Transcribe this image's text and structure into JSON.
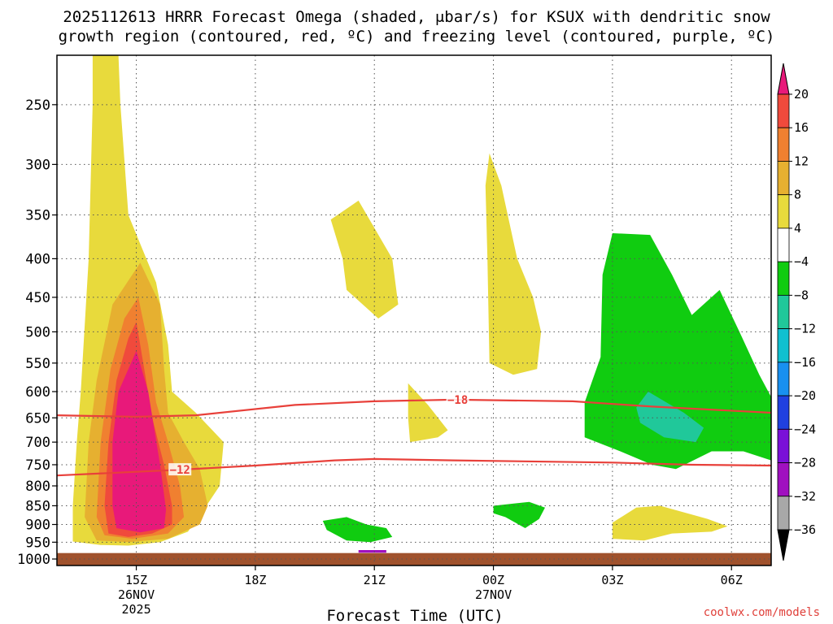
{
  "title": {
    "line1": "2025112613 HRRR Forecast Omega (shaded, μbar/s) for KSUX with dendritic snow",
    "line2": "growth region (contoured, red, ºC) and freezing level (contoured, purple, ºC)"
  },
  "credit": "coolwx.com/models",
  "chart_data": {
    "type": "heatmap",
    "xlabel": "Forecast Time (UTC)",
    "ylabel": "",
    "x_range_hours_from_13z": [
      0,
      18
    ],
    "y_axis": {
      "scale": "log",
      "reversed": true,
      "range": [
        1020,
        215
      ]
    },
    "y_ticks": [
      250,
      300,
      350,
      400,
      450,
      500,
      550,
      600,
      650,
      700,
      750,
      800,
      850,
      900,
      950,
      1000
    ],
    "y_tick_labels": [
      "250",
      "300",
      "350",
      "400",
      "450",
      "500",
      "550",
      "600",
      "650",
      "700",
      "750",
      "800",
      "850",
      "900",
      "950",
      "1000"
    ],
    "x_ticks": [
      {
        "hour": 2,
        "label": "15Z",
        "sub1": "26NOV",
        "sub2": "2025"
      },
      {
        "hour": 5,
        "label": "18Z",
        "sub1": "",
        "sub2": ""
      },
      {
        "hour": 8,
        "label": "21Z",
        "sub1": "",
        "sub2": ""
      },
      {
        "hour": 11,
        "label": "00Z",
        "sub1": "27NOV",
        "sub2": ""
      },
      {
        "hour": 14,
        "label": "03Z",
        "sub1": "",
        "sub2": ""
      },
      {
        "hour": 17,
        "label": "06Z",
        "sub1": "",
        "sub2": ""
      }
    ],
    "grid": true,
    "colorbar": {
      "labels": [
        "20",
        "16",
        "12",
        "8",
        "4",
        "−4",
        "−8",
        "−12",
        "−16",
        "−20",
        "−24",
        "−28",
        "−32",
        "−36"
      ],
      "colors": [
        "#e8197a",
        "#f04a3c",
        "#f08030",
        "#e6b030",
        "#e8da3c",
        "#ffffff",
        "#10cc10",
        "#20c89a",
        "#10c0d0",
        "#1890f0",
        "#2040e0",
        "#7a10d8",
        "#a010c0",
        "#a8a8a8",
        "#000000"
      ]
    },
    "omega_shading": [
      {
        "level": 4,
        "color": "#e8da3c",
        "points": [
          [
            0.9,
            215
          ],
          [
            1.55,
            215
          ],
          [
            1.6,
            250
          ],
          [
            1.8,
            350
          ],
          [
            2.5,
            430
          ],
          [
            2.8,
            520
          ],
          [
            2.9,
            600
          ],
          [
            3.5,
            640
          ],
          [
            4.2,
            700
          ],
          [
            4.1,
            800
          ],
          [
            3.7,
            860
          ],
          [
            3.3,
            920
          ],
          [
            2.6,
            950
          ],
          [
            1.8,
            960
          ],
          [
            1.1,
            958
          ],
          [
            0.4,
            948
          ],
          [
            0.4,
            850
          ],
          [
            0.5,
            700
          ],
          [
            0.6,
            600
          ],
          [
            0.8,
            400
          ],
          [
            0.9,
            250
          ]
        ]
      },
      {
        "level": 8,
        "color": "#e6b030",
        "points": [
          [
            2.1,
            405
          ],
          [
            2.6,
            460
          ],
          [
            2.7,
            560
          ],
          [
            2.8,
            640
          ],
          [
            3.2,
            700
          ],
          [
            3.6,
            760
          ],
          [
            3.8,
            850
          ],
          [
            3.6,
            900
          ],
          [
            2.8,
            940
          ],
          [
            1.8,
            950
          ],
          [
            1.0,
            945
          ],
          [
            0.7,
            880
          ],
          [
            0.8,
            700
          ],
          [
            1.0,
            580
          ],
          [
            1.4,
            460
          ]
        ]
      },
      {
        "level": 12,
        "color": "#f08030",
        "points": [
          [
            2.05,
            450
          ],
          [
            2.3,
            520
          ],
          [
            2.5,
            620
          ],
          [
            2.8,
            700
          ],
          [
            3.1,
            800
          ],
          [
            3.2,
            880
          ],
          [
            2.8,
            925
          ],
          [
            1.9,
            940
          ],
          [
            1.2,
            930
          ],
          [
            1.0,
            880
          ],
          [
            1.1,
            700
          ],
          [
            1.35,
            560
          ],
          [
            1.7,
            480
          ]
        ]
      },
      {
        "level": 16,
        "color": "#f04a3c",
        "points": [
          [
            2.0,
            485
          ],
          [
            2.2,
            560
          ],
          [
            2.4,
            650
          ],
          [
            2.7,
            750
          ],
          [
            2.9,
            850
          ],
          [
            2.9,
            900
          ],
          [
            2.4,
            925
          ],
          [
            1.8,
            935
          ],
          [
            1.3,
            925
          ],
          [
            1.2,
            850
          ],
          [
            1.3,
            700
          ],
          [
            1.5,
            580
          ],
          [
            1.8,
            510
          ]
        ]
      },
      {
        "level": 20,
        "color": "#e8197a",
        "points": [
          [
            2.0,
            530
          ],
          [
            2.3,
            600
          ],
          [
            2.6,
            750
          ],
          [
            2.75,
            860
          ],
          [
            2.7,
            910
          ],
          [
            2.1,
            922
          ],
          [
            1.5,
            910
          ],
          [
            1.4,
            850
          ],
          [
            1.4,
            700
          ],
          [
            1.55,
            600
          ]
        ]
      },
      {
        "level": 4,
        "color": "#e8da3c",
        "points": [
          [
            6.9,
            355
          ],
          [
            7.6,
            335
          ],
          [
            8.45,
            400
          ],
          [
            8.6,
            460
          ],
          [
            8.1,
            480
          ],
          [
            7.3,
            440
          ],
          [
            7.2,
            400
          ]
        ]
      },
      {
        "level": 4,
        "color": "#e8da3c",
        "points": [
          [
            8.85,
            585
          ],
          [
            9.35,
            625
          ],
          [
            9.85,
            675
          ],
          [
            9.6,
            690
          ],
          [
            8.9,
            700
          ],
          [
            8.85,
            650
          ]
        ]
      },
      {
        "level": 4,
        "color": "#e8da3c",
        "points": [
          [
            10.9,
            290
          ],
          [
            11.2,
            320
          ],
          [
            11.6,
            400
          ],
          [
            12.0,
            450
          ],
          [
            12.2,
            500
          ],
          [
            12.1,
            560
          ],
          [
            11.5,
            570
          ],
          [
            10.9,
            550
          ],
          [
            10.85,
            400
          ],
          [
            10.8,
            320
          ]
        ]
      },
      {
        "level": 4,
        "color": "#e8da3c",
        "points": [
          [
            14.0,
            895
          ],
          [
            14.6,
            855
          ],
          [
            15.2,
            850
          ],
          [
            16.4,
            885
          ],
          [
            16.9,
            905
          ],
          [
            16.5,
            920
          ],
          [
            15.5,
            925
          ],
          [
            14.8,
            945
          ],
          [
            14.0,
            940
          ]
        ]
      },
      {
        "level": -4,
        "color": "#10cc10",
        "points": [
          [
            14.0,
            370
          ],
          [
            14.95,
            372
          ],
          [
            15.5,
            420
          ],
          [
            16.0,
            475
          ],
          [
            16.7,
            440
          ],
          [
            17.2,
            500
          ],
          [
            17.7,
            570
          ],
          [
            18.0,
            610
          ],
          [
            18.0,
            740
          ],
          [
            17.3,
            720
          ],
          [
            16.5,
            720
          ],
          [
            15.6,
            760
          ],
          [
            15.0,
            750
          ],
          [
            14.2,
            720
          ],
          [
            13.3,
            690
          ],
          [
            13.3,
            620
          ],
          [
            13.7,
            540
          ],
          [
            13.75,
            420
          ]
        ]
      },
      {
        "level": -8,
        "color": "#20c89a",
        "points": [
          [
            14.9,
            600
          ],
          [
            15.8,
            640
          ],
          [
            16.3,
            670
          ],
          [
            16.1,
            700
          ],
          [
            15.3,
            690
          ],
          [
            14.7,
            660
          ],
          [
            14.6,
            630
          ]
        ]
      },
      {
        "level": -4,
        "color": "#10cc10",
        "points": [
          [
            6.7,
            890
          ],
          [
            7.3,
            880
          ],
          [
            7.8,
            900
          ],
          [
            8.3,
            910
          ],
          [
            8.45,
            935
          ],
          [
            7.9,
            950
          ],
          [
            7.3,
            945
          ],
          [
            6.8,
            915
          ]
        ]
      },
      {
        "level": -4,
        "color": "#10cc10",
        "points": [
          [
            11.0,
            850
          ],
          [
            11.9,
            840
          ],
          [
            12.3,
            855
          ],
          [
            12.15,
            885
          ],
          [
            11.8,
            910
          ],
          [
            11.3,
            880
          ],
          [
            11.0,
            870
          ]
        ]
      },
      {
        "level": -32,
        "color": "#a010c0",
        "points": [
          [
            7.6,
            973
          ],
          [
            8.3,
            973
          ],
          [
            8.3,
            981
          ],
          [
            7.6,
            981
          ]
        ]
      }
    ],
    "dgz_contours": [
      {
        "label": "−18",
        "label_hour": 10.1,
        "color": "#e8403a",
        "points": [
          [
            0,
            645
          ],
          [
            2,
            648
          ],
          [
            3.5,
            645
          ],
          [
            6,
            625
          ],
          [
            8,
            618
          ],
          [
            10,
            615
          ],
          [
            13,
            618
          ],
          [
            15,
            628
          ],
          [
            18,
            640
          ]
        ]
      },
      {
        "label": "−12",
        "label_hour": 3.1,
        "color": "#e8403a",
        "points": [
          [
            0,
            775
          ],
          [
            3,
            762
          ],
          [
            5,
            752
          ],
          [
            7,
            740
          ],
          [
            8,
            737
          ],
          [
            10,
            740
          ],
          [
            14,
            745
          ],
          [
            16,
            750
          ],
          [
            18,
            752
          ]
        ]
      }
    ],
    "ground": {
      "color": "#a0522d",
      "top_hpa": 982
    }
  }
}
